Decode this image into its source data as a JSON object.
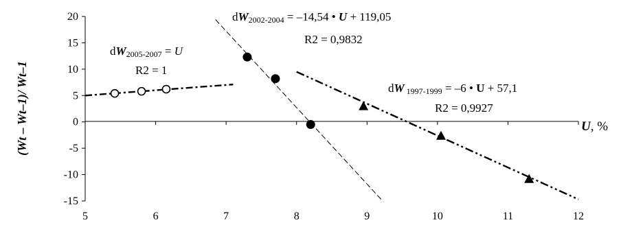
{
  "chart_data": {
    "type": "scatter",
    "xlim": [
      5,
      12
    ],
    "ylim": [
      -15,
      20
    ],
    "x_ticks": [
      "5",
      "6",
      "7",
      "8",
      "9",
      "10",
      "11",
      "12"
    ],
    "y_ticks": [
      "20",
      "15",
      "10",
      "5",
      "0",
      "-5",
      "-10",
      "-15"
    ],
    "ylabel": "(Wt – Wt–1)/ Wt–1",
    "xlabel": {
      "var": "U",
      "rest": ", %"
    },
    "grid": false,
    "series": [
      {
        "marker": "open-circle",
        "points": [
          [
            5.42,
            5.4
          ],
          [
            5.8,
            5.8
          ],
          [
            6.15,
            6.2
          ]
        ],
        "trend": {
          "x": [
            5,
            7.1
          ],
          "y": [
            5.0,
            7.1
          ],
          "dash": "dash-dot"
        }
      },
      {
        "marker": "filled-circle",
        "points": [
          [
            7.3,
            12.3
          ],
          [
            7.7,
            8.2
          ],
          [
            8.2,
            -0.5
          ]
        ],
        "trend": {
          "x": [
            6.85,
            9.2
          ],
          "y": [
            19.4,
            -14.7
          ],
          "dash": "dash"
        }
      },
      {
        "marker": "filled-triangle",
        "points": [
          [
            8.95,
            3.0
          ],
          [
            10.05,
            -2.6
          ],
          [
            11.3,
            -10.8
          ]
        ],
        "trend": {
          "x": [
            8.0,
            12.0
          ],
          "y": [
            9.5,
            -14.7
          ],
          "dash": "dash-dot-dot"
        }
      }
    ],
    "annotations": [
      {
        "eq": {
          "pre": "d",
          "var": "W",
          "sub": "2005-2007",
          "mid": " = ",
          "coef": "",
          "uvar": "U",
          "post": ""
        },
        "r2": "R2 = 1"
      },
      {
        "eq": {
          "pre": "d",
          "var": "W",
          "sub": "2002-2004",
          "mid": " = –14,54 • ",
          "coef": "",
          "uvar": "U",
          "post": " + 119,05"
        },
        "r2": "R2 = 0,9832"
      },
      {
        "eq": {
          "pre": "d",
          "var": "W",
          "sub": " 1997-1999",
          "mid": " = –6 • ",
          "coef": "",
          "uvar": "U",
          "post": " + 57,1"
        },
        "r2": "R2 = 0,9927"
      }
    ]
  }
}
